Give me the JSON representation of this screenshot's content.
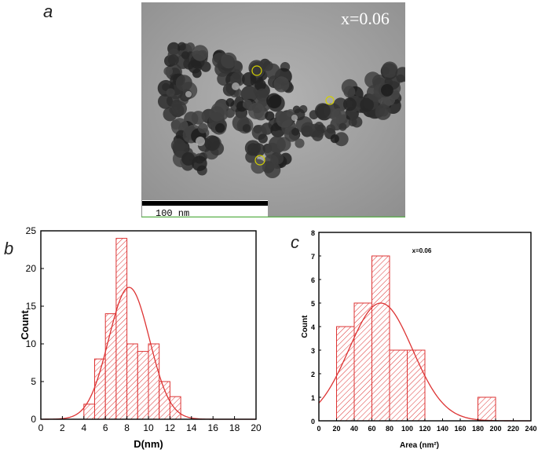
{
  "panels": {
    "a": {
      "letter": "a",
      "label": "x=0.06",
      "scale_bar": "100 nm"
    },
    "b": {
      "letter": "b"
    },
    "c": {
      "letter": "c",
      "annotation": "x=0.06"
    }
  },
  "colors": {
    "bars": "#d33333",
    "fit": "#d33333"
  },
  "chart_data": [
    {
      "id": "b",
      "type": "bar",
      "xlabel": "D(nm)",
      "ylabel": "Count",
      "xlim": [
        0,
        20
      ],
      "ylim": [
        0,
        25
      ],
      "xticks": [
        0,
        2,
        4,
        6,
        8,
        10,
        12,
        14,
        16,
        18,
        20
      ],
      "yticks": [
        0,
        5,
        10,
        15,
        20,
        25
      ],
      "bins": [
        {
          "x0": 4,
          "x1": 5,
          "value": 2
        },
        {
          "x0": 5,
          "x1": 6,
          "value": 8
        },
        {
          "x0": 6,
          "x1": 7,
          "value": 14
        },
        {
          "x0": 7,
          "x1": 8,
          "value": 24
        },
        {
          "x0": 8,
          "x1": 9,
          "value": 10
        },
        {
          "x0": 9,
          "x1": 10,
          "value": 9
        },
        {
          "x0": 10,
          "x1": 11,
          "value": 10
        },
        {
          "x0": 11,
          "x1": 12,
          "value": 5
        },
        {
          "x0": 12,
          "x1": 13,
          "value": 3
        }
      ],
      "fit": {
        "type": "gaussian",
        "mean": 8.2,
        "sigma": 1.9,
        "peak": 17.5
      },
      "grid": false
    },
    {
      "id": "c",
      "type": "bar",
      "xlabel": "Area (nm²)",
      "ylabel": "Count",
      "xlim": [
        0,
        240
      ],
      "ylim": [
        0,
        8
      ],
      "xticks": [
        0,
        20,
        40,
        60,
        80,
        100,
        120,
        140,
        160,
        180,
        200,
        220,
        240
      ],
      "yticks": [
        0,
        1,
        2,
        3,
        4,
        5,
        6,
        7,
        8
      ],
      "bins": [
        {
          "x0": 20,
          "x1": 40,
          "value": 4
        },
        {
          "x0": 40,
          "x1": 60,
          "value": 5
        },
        {
          "x0": 60,
          "x1": 80,
          "value": 7
        },
        {
          "x0": 80,
          "x1": 100,
          "value": 3
        },
        {
          "x0": 100,
          "x1": 120,
          "value": 3
        },
        {
          "x0": 180,
          "x1": 200,
          "value": 1
        }
      ],
      "fit": {
        "type": "gaussian",
        "mean": 70,
        "sigma": 36,
        "peak": 5
      },
      "grid": false
    }
  ]
}
